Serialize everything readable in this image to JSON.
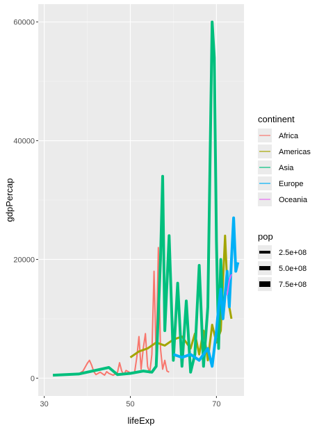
{
  "chart_data": {
    "type": "line",
    "title": "",
    "xlabel": "lifeExp",
    "ylabel": "gdpPercap",
    "xlim": [
      28.6,
      76.4
    ],
    "ylim": [
      -3000,
      63000
    ],
    "xticks": [
      30,
      50,
      70
    ],
    "yticks": [
      0,
      20000,
      40000,
      60000
    ],
    "xtick_labels": [
      "30",
      "50",
      "70"
    ],
    "ytick_labels": [
      "0",
      "20000",
      "40000",
      "60000"
    ],
    "grid": true,
    "legend_position": "right",
    "legends": [
      {
        "title": "continent",
        "kind": "color",
        "entries": [
          {
            "label": "Africa",
            "color": "#F8766D"
          },
          {
            "label": "Americas",
            "color": "#A3A500"
          },
          {
            "label": "Asia",
            "color": "#00BF7D"
          },
          {
            "label": "Europe",
            "color": "#00B0F6"
          },
          {
            "label": "Oceania",
            "color": "#E76BF3"
          }
        ]
      },
      {
        "title": "pop",
        "kind": "size",
        "entries": [
          {
            "label": "2.5e+08",
            "value": 250000000
          },
          {
            "label": "5.0e+08",
            "value": 500000000
          },
          {
            "label": "7.5e+08",
            "value": 750000000
          }
        ]
      }
    ],
    "series": [
      {
        "name": "Africa",
        "color": "#F8766D",
        "width": 2,
        "points": [
          [
            38,
            700
          ],
          [
            39,
            1200
          ],
          [
            40,
            2500
          ],
          [
            40.5,
            3000
          ],
          [
            41,
            2200
          ],
          [
            41.5,
            1100
          ],
          [
            42,
            600
          ],
          [
            43,
            1000
          ],
          [
            44,
            500
          ],
          [
            44.5,
            1100
          ],
          [
            45,
            800
          ],
          [
            46,
            500
          ],
          [
            47,
            900
          ],
          [
            47.5,
            2600
          ],
          [
            48,
            1200
          ],
          [
            48.5,
            600
          ],
          [
            49,
            1300
          ],
          [
            50,
            900
          ],
          [
            51,
            1000
          ],
          [
            51.5,
            3500
          ],
          [
            52,
            7000
          ],
          [
            52.5,
            1500
          ],
          [
            53,
            5000
          ],
          [
            53.5,
            7500
          ],
          [
            54,
            2000
          ],
          [
            54.5,
            900
          ],
          [
            55,
            4000
          ],
          [
            55.5,
            18000
          ],
          [
            56,
            3000
          ],
          [
            56.5,
            22000
          ],
          [
            57,
            5000
          ],
          [
            57.5,
            1500
          ],
          [
            58,
            3000
          ],
          [
            58.5,
            1200
          ],
          [
            59,
            1000
          ]
        ]
      },
      {
        "name": "Americas",
        "color": "#A3A500",
        "width": 3,
        "points": [
          [
            50,
            3500
          ],
          [
            52,
            4500
          ],
          [
            54,
            5000
          ],
          [
            56,
            6000
          ],
          [
            58,
            5500
          ],
          [
            60,
            6500
          ],
          [
            62,
            7000
          ],
          [
            64,
            5000
          ],
          [
            65,
            7500
          ],
          [
            66,
            4000
          ],
          [
            67,
            8000
          ],
          [
            68,
            3000
          ],
          [
            69,
            9000
          ],
          [
            70,
            6000
          ],
          [
            71,
            8000
          ],
          [
            72,
            24000
          ],
          [
            72.5,
            16000
          ],
          [
            73,
            12000
          ],
          [
            73.5,
            10000
          ]
        ]
      },
      {
        "name": "Asia",
        "color": "#00BF7D",
        "width": 4,
        "points": [
          [
            32,
            500
          ],
          [
            38,
            700
          ],
          [
            45,
            1800
          ],
          [
            47,
            600
          ],
          [
            50,
            800
          ],
          [
            53,
            1200
          ],
          [
            55,
            1000
          ],
          [
            56,
            2000
          ],
          [
            57,
            20000
          ],
          [
            57.5,
            34000
          ],
          [
            58,
            8000
          ],
          [
            59,
            24000
          ],
          [
            60,
            3000
          ],
          [
            61,
            16000
          ],
          [
            62,
            2000
          ],
          [
            63,
            13000
          ],
          [
            64,
            1000
          ],
          [
            65,
            4000
          ],
          [
            66,
            19000
          ],
          [
            67,
            2000
          ],
          [
            68,
            12000
          ],
          [
            69,
            60000
          ],
          [
            69.5,
            54000
          ],
          [
            70,
            23000
          ],
          [
            70.5,
            5000
          ],
          [
            71,
            20000
          ],
          [
            71.5,
            10000
          ]
        ]
      },
      {
        "name": "Europe",
        "color": "#00B0F6",
        "width": 4,
        "points": [
          [
            60,
            4000
          ],
          [
            62,
            3500
          ],
          [
            64,
            4000
          ],
          [
            66,
            3000
          ],
          [
            68,
            5000
          ],
          [
            69,
            2000
          ],
          [
            70,
            8000
          ],
          [
            70.5,
            12000
          ],
          [
            71,
            15000
          ],
          [
            71.5,
            10000
          ],
          [
            72,
            14000
          ],
          [
            72.5,
            18000
          ],
          [
            73,
            12000
          ],
          [
            73.5,
            20000
          ],
          [
            74,
            27000
          ],
          [
            74.5,
            18000
          ],
          [
            75,
            19500
          ]
        ]
      },
      {
        "name": "Oceania",
        "color": "#E76BF3",
        "width": 2,
        "points": [
          [
            72.5,
            14000
          ],
          [
            73,
            16500
          ],
          [
            73.5,
            17500
          ]
        ]
      }
    ]
  }
}
